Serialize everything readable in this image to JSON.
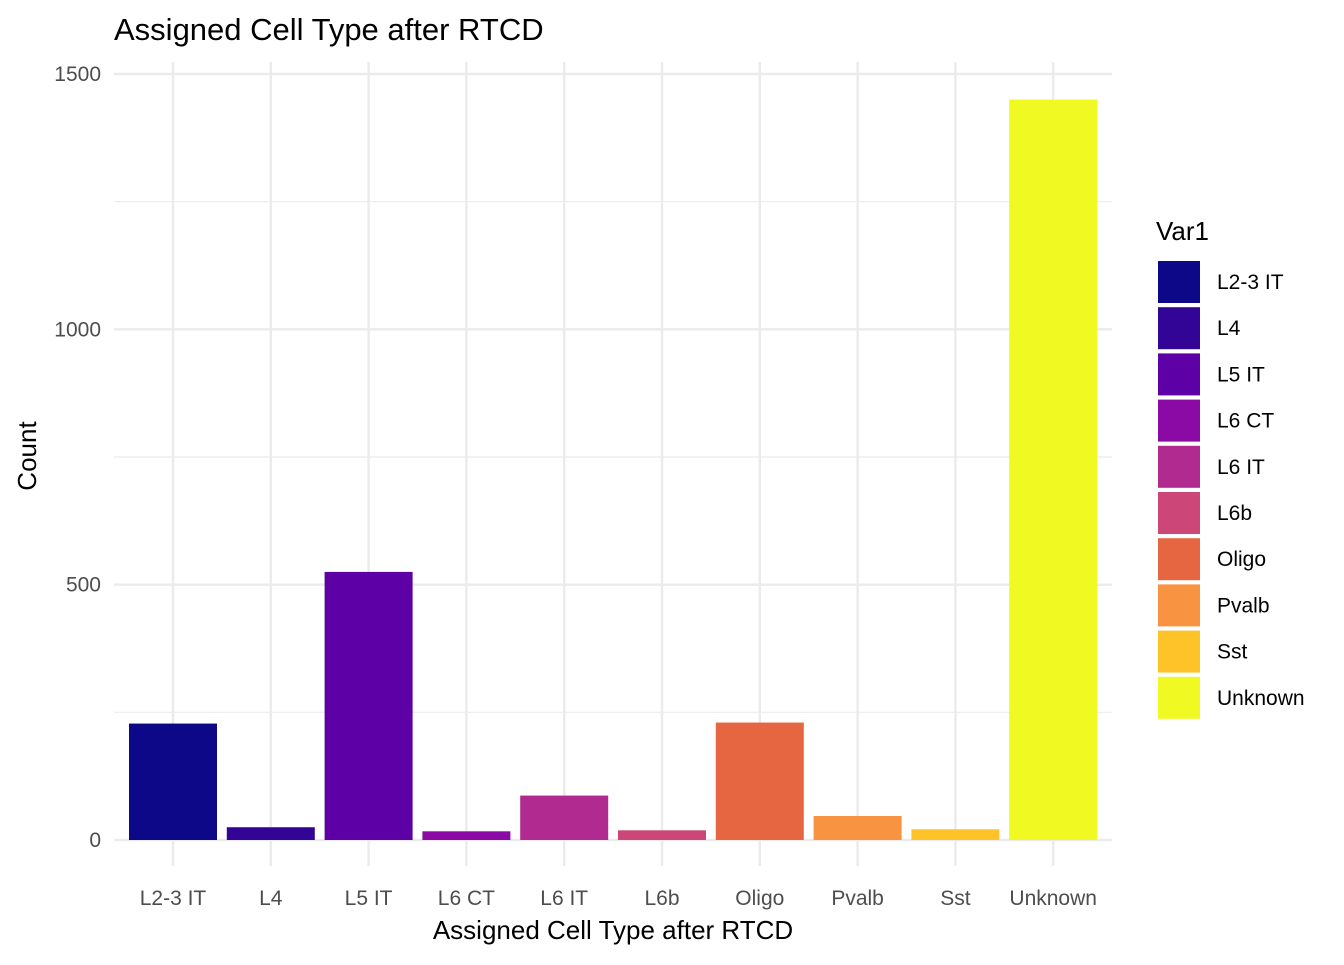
{
  "chart_data": {
    "type": "bar",
    "title": "Assigned Cell Type after RTCD",
    "xlabel": "Assigned Cell Type after RTCD",
    "ylabel": "Count",
    "ylim": [
      0,
      1500
    ],
    "yticks": [
      0,
      500,
      1000,
      1500
    ],
    "grid": true,
    "legend_title": "Var1",
    "legend_position": "right",
    "categories": [
      "L2-3 IT",
      "L4",
      "L5 IT",
      "L6 CT",
      "L6 IT",
      "L6b",
      "Oligo",
      "Pvalb",
      "Sst",
      "Unknown"
    ],
    "values": [
      228,
      25,
      525,
      17,
      87,
      19,
      230,
      47,
      21,
      1450
    ],
    "colors": [
      "#0D0887",
      "#3E049C",
      "#6300A7",
      "#8707A6",
      "#A62098",
      "#C03A83",
      "#D5546E",
      "#E76F5A",
      "#F58C46",
      "#FDAD32",
      "#FCD225",
      "#F0F921"
    ]
  }
}
